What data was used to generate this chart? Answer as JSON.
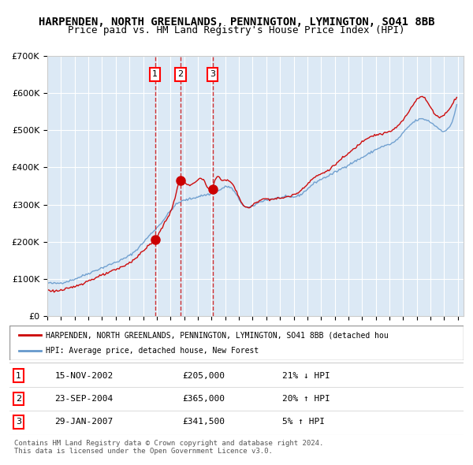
{
  "title": "HARPENDEN, NORTH GREENLANDS, PENNINGTON, LYMINGTON, SO41 8BB",
  "subtitle": "Price paid vs. HM Land Registry's House Price Index (HPI)",
  "sale_dates": [
    "2002-11-15",
    "2004-09-23",
    "2007-01-29"
  ],
  "sale_prices": [
    205000,
    365000,
    341500
  ],
  "sale_labels": [
    "1",
    "2",
    "3"
  ],
  "legend_entries": [
    "HARPENDEN, NORTH GREENLANDS, PENNINGTON, LYMINGTON, SO41 8BB (detached hou",
    "HPI: Average price, detached house, New Forest"
  ],
  "table_rows": [
    [
      "1",
      "15-NOV-2002",
      "£205,000",
      "21% ↓ HPI"
    ],
    [
      "2",
      "23-SEP-2004",
      "£365,000",
      "20% ↑ HPI"
    ],
    [
      "3",
      "29-JAN-2007",
      "£341,500",
      "5% ↑ HPI"
    ]
  ],
  "footer": "Contains HM Land Registry data © Crown copyright and database right 2024.\nThis data is licensed under the Open Government Licence v3.0.",
  "ylim": [
    0,
    700000
  ],
  "yticks": [
    0,
    100000,
    200000,
    300000,
    400000,
    500000,
    600000,
    700000
  ],
  "ytick_labels": [
    "£0",
    "£100K",
    "£200K",
    "£300K",
    "£400K",
    "£500K",
    "£600K",
    "£700K"
  ],
  "background_color": "#dce9f5",
  "plot_area_color": "#dce9f5",
  "red_line_color": "#cc0000",
  "blue_line_color": "#6699cc",
  "dot_color": "#cc0000",
  "dashed_line_color": "#cc0000",
  "grid_color": "#ffffff",
  "title_fontsize": 10,
  "subtitle_fontsize": 9
}
